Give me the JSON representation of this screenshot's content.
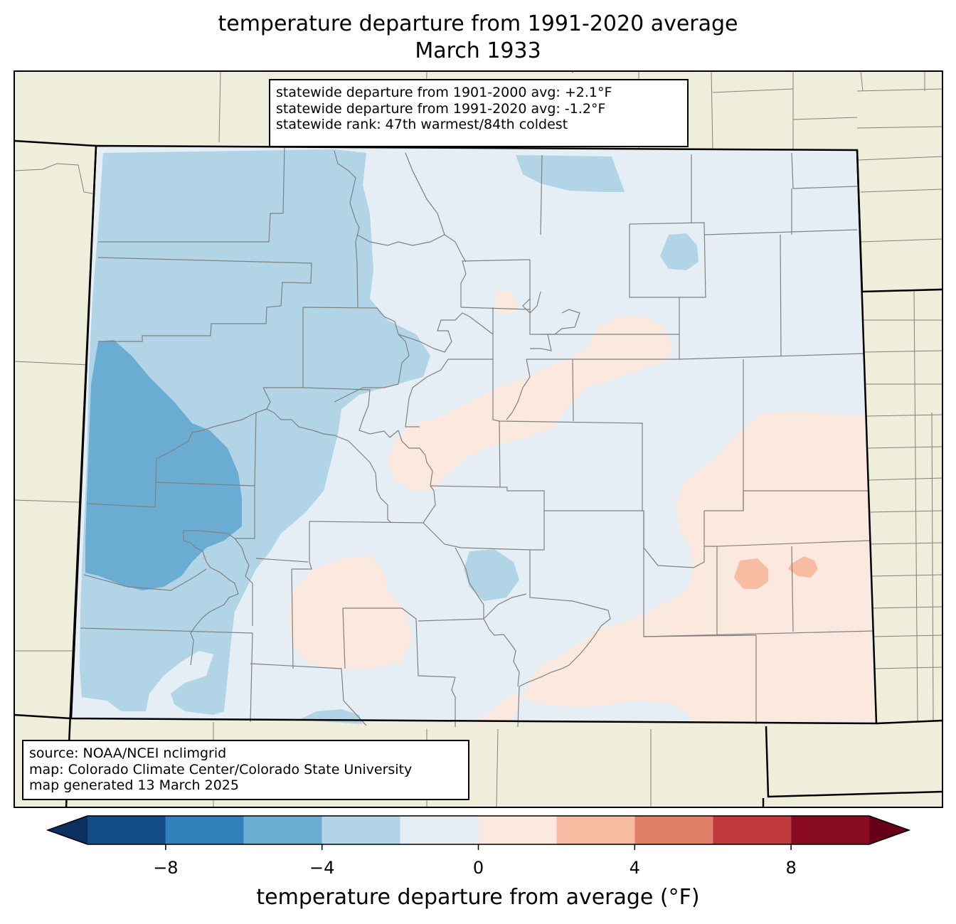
{
  "title": {
    "line1": "temperature departure from 1991-2020 average",
    "line2": "March 1933"
  },
  "stats": {
    "line1": "statewide departure from 1901-2000 avg: +2.1°F",
    "line2": "statewide departure from 1991-2020 avg: -1.2°F",
    "line3": "statewide rank: 47th warmest/84th coldest"
  },
  "source": {
    "line1": "source: NOAA/NCEI nclimgrid",
    "line2": "map: Colorado Climate Center/Colorado State University",
    "line3": "map generated 13 March 2025"
  },
  "colorbar": {
    "label": "temperature departure from average (°F)",
    "min": -10,
    "max": 10,
    "ticks": [
      {
        "value": -8,
        "label": "−8"
      },
      {
        "value": -4,
        "label": "−4"
      },
      {
        "value": 0,
        "label": "0"
      },
      {
        "value": 4,
        "label": "4"
      },
      {
        "value": 8,
        "label": "8"
      }
    ],
    "bins": [
      {
        "from": -10,
        "to": -8,
        "color": "#144b89"
      },
      {
        "from": -8,
        "to": -6,
        "color": "#3180bb"
      },
      {
        "from": -6,
        "to": -4,
        "color": "#6badd2"
      },
      {
        "from": -4,
        "to": -2,
        "color": "#b2d4e7"
      },
      {
        "from": -2,
        "to": 0,
        "color": "#e6eef5"
      },
      {
        "from": 0,
        "to": 2,
        "color": "#fbe8df"
      },
      {
        "from": 2,
        "to": 4,
        "color": "#f8bca2"
      },
      {
        "from": 4,
        "to": 6,
        "color": "#e27f68"
      },
      {
        "from": 6,
        "to": 8,
        "color": "#c03a3d"
      },
      {
        "from": 8,
        "to": 10,
        "color": "#880b22"
      }
    ],
    "under_color": "#0a3060",
    "over_color": "#670016"
  },
  "colors": {
    "background_land": "#efeedb",
    "county_lines": "#808080",
    "state_lines": "#000000"
  }
}
